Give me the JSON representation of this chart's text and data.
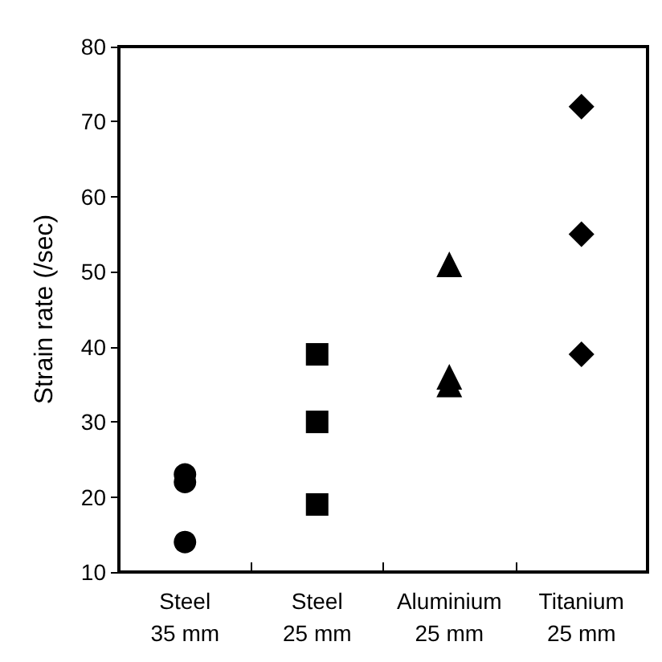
{
  "chart_data": {
    "type": "scatter",
    "ylabel": "Strain rate (/sec)",
    "categories": [
      "Steel\n35 mm",
      "Steel\n25 mm",
      "Aluminium\n25 mm",
      "Titanium\n25 mm"
    ],
    "series": [
      {
        "color": "#000000",
        "marker": "circle",
        "x": [
          "Steel\n35 mm",
          "Steel\n35 mm",
          "Steel\n35 mm"
        ],
        "values": [
          23,
          22,
          14
        ]
      },
      {
        "color": "#000000",
        "marker": "square",
        "x": [
          "Steel\n25 mm",
          "Steel\n25 mm",
          "Steel\n25 mm"
        ],
        "values": [
          39,
          30,
          19
        ]
      },
      {
        "color": "#000000",
        "marker": "triangle",
        "x": [
          "Aluminium\n25 mm",
          "Aluminium\n25 mm",
          "Aluminium\n25 mm"
        ],
        "values": [
          51,
          36,
          35
        ]
      },
      {
        "color": "#000000",
        "marker": "diamond",
        "x": [
          "Titanium\n25 mm",
          "Titanium\n25 mm",
          "Titanium\n25 mm"
        ],
        "values": [
          72,
          55,
          39
        ]
      }
    ],
    "ylim": [
      10,
      80
    ],
    "yticks": [
      10,
      20,
      30,
      40,
      50,
      60,
      70,
      80
    ]
  }
}
